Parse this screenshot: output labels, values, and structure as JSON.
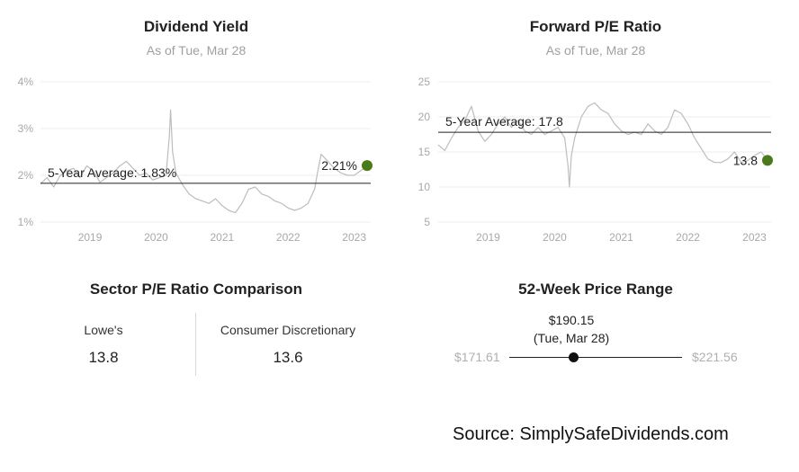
{
  "chart_data": [
    {
      "type": "line",
      "title": "Dividend Yield",
      "subtitle": "As of Tue, Mar 28",
      "x_ticks": [
        "2019",
        "2020",
        "2021",
        "2022",
        "2023"
      ],
      "y_ticks": [
        "4%",
        "3%",
        "2%",
        "1%"
      ],
      "ylim": [
        1,
        4
      ],
      "xlim": [
        2018.25,
        2023.25
      ],
      "grid": "horizontal",
      "average_label": "5-Year Average: 1.83%",
      "average_value": 1.83,
      "current_label": "2.21%",
      "current_value": 2.21,
      "marker_color": "#4a7a1c",
      "line_color": "#bdbdbd",
      "x": [
        2018.25,
        2018.35,
        2018.45,
        2018.55,
        2018.65,
        2018.75,
        2018.85,
        2018.95,
        2019.05,
        2019.15,
        2019.25,
        2019.35,
        2019.45,
        2019.55,
        2019.65,
        2019.75,
        2019.85,
        2019.95,
        2020.05,
        2020.15,
        2020.2,
        2020.22,
        2020.25,
        2020.3,
        2020.4,
        2020.5,
        2020.6,
        2020.7,
        2020.8,
        2020.9,
        2021.0,
        2021.1,
        2021.2,
        2021.3,
        2021.4,
        2021.5,
        2021.6,
        2021.7,
        2021.8,
        2021.9,
        2022.0,
        2022.1,
        2022.2,
        2022.3,
        2022.4,
        2022.45,
        2022.5,
        2022.6,
        2022.7,
        2022.8,
        2022.9,
        2023.0,
        2023.1,
        2023.2
      ],
      "values": [
        1.82,
        1.95,
        1.75,
        2.0,
        2.1,
        2.15,
        1.95,
        2.2,
        2.1,
        1.85,
        1.95,
        2.05,
        2.2,
        2.3,
        2.15,
        2.0,
        2.05,
        1.9,
        1.95,
        2.0,
        2.8,
        3.4,
        2.5,
        2.05,
        1.8,
        1.6,
        1.5,
        1.45,
        1.4,
        1.5,
        1.35,
        1.25,
        1.2,
        1.4,
        1.7,
        1.75,
        1.6,
        1.55,
        1.45,
        1.4,
        1.3,
        1.25,
        1.3,
        1.4,
        1.7,
        2.1,
        2.45,
        2.3,
        2.15,
        2.05,
        2.0,
        2.0,
        2.1,
        2.21
      ]
    },
    {
      "type": "line",
      "title": "Forward P/E Ratio",
      "subtitle": "As of Tue, Mar 28",
      "x_ticks": [
        "2019",
        "2020",
        "2021",
        "2022",
        "2023"
      ],
      "y_ticks": [
        "25",
        "20",
        "15",
        "10",
        "5"
      ],
      "ylim": [
        5,
        25
      ],
      "xlim": [
        2018.25,
        2023.25
      ],
      "grid": "horizontal",
      "average_label": "5-Year Average: 17.8",
      "average_value": 17.8,
      "current_label": "13.8",
      "current_value": 13.8,
      "marker_color": "#4a7a1c",
      "line_color": "#bdbdbd",
      "x": [
        2018.25,
        2018.35,
        2018.45,
        2018.55,
        2018.65,
        2018.75,
        2018.85,
        2018.95,
        2019.05,
        2019.15,
        2019.25,
        2019.35,
        2019.45,
        2019.55,
        2019.65,
        2019.75,
        2019.85,
        2019.95,
        2020.05,
        2020.15,
        2020.2,
        2020.22,
        2020.25,
        2020.3,
        2020.4,
        2020.5,
        2020.6,
        2020.7,
        2020.8,
        2020.9,
        2021.0,
        2021.1,
        2021.2,
        2021.3,
        2021.4,
        2021.5,
        2021.6,
        2021.7,
        2021.8,
        2021.9,
        2022.0,
        2022.1,
        2022.2,
        2022.3,
        2022.4,
        2022.5,
        2022.6,
        2022.7,
        2022.8,
        2022.9,
        2023.0,
        2023.1,
        2023.2
      ],
      "values": [
        16.0,
        15.2,
        17.0,
        18.5,
        19.5,
        21.5,
        18.0,
        16.5,
        17.5,
        19.0,
        20.0,
        18.5,
        19.5,
        18.0,
        17.5,
        18.5,
        17.5,
        18.0,
        18.5,
        17.0,
        13.0,
        10.0,
        14.5,
        17.0,
        20.0,
        21.5,
        22.0,
        21.0,
        20.5,
        19.0,
        18.0,
        17.5,
        17.8,
        17.5,
        19.0,
        18.0,
        17.5,
        18.5,
        21.0,
        20.5,
        19.0,
        17.0,
        15.5,
        14.0,
        13.5,
        13.5,
        14.0,
        15.0,
        13.5,
        13.8,
        14.5,
        15.0,
        13.8
      ]
    }
  ],
  "sector": {
    "title": "Sector P/E Ratio Comparison",
    "left_name": "Lowe's",
    "left_value": "13.8",
    "right_name": "Consumer Discretionary",
    "right_value": "13.6"
  },
  "range": {
    "title": "52-Week Price Range",
    "current_price": "$190.15",
    "current_date": "(Tue, Mar 28)",
    "low": "$171.61",
    "high": "$221.56",
    "current_position": 0.37
  },
  "source": "Source: SimplySafeDividends.com"
}
